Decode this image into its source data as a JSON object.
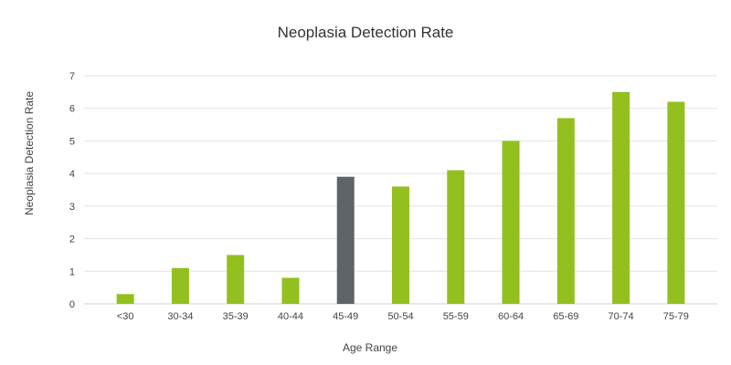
{
  "chart_data": {
    "type": "bar",
    "title": "Neoplasia Detection Rate",
    "xlabel": "Age Range",
    "ylabel": "Neoplasia Detection Rate",
    "categories": [
      "<30",
      "30-34",
      "35-39",
      "40-44",
      "45-49",
      "50-54",
      "55-59",
      "60-64",
      "65-69",
      "70-74",
      "75-79"
    ],
    "values": [
      0.3,
      1.1,
      1.5,
      0.8,
      3.9,
      3.6,
      4.1,
      5.0,
      5.7,
      6.5,
      6.2
    ],
    "highlight_index": 4,
    "ylim": [
      0,
      7
    ],
    "yticks": [
      0,
      1,
      2,
      3,
      4,
      5,
      6,
      7
    ],
    "grid": true,
    "colors": {
      "bar": "#93c01f",
      "highlight": "#5f6469",
      "grid": "#e2e2e2",
      "text": "#444444",
      "title": "#333333"
    }
  }
}
